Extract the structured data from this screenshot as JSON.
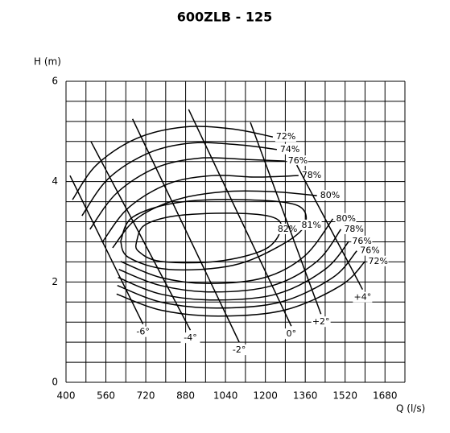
{
  "chart_data": {
    "type": "contour",
    "title": "600ZLB - 125",
    "xlabel": "Q (l/s)",
    "ylabel": "H (m)",
    "xlim": [
      400,
      1760
    ],
    "ylim": [
      0,
      6
    ],
    "xticks": [
      400,
      560,
      720,
      880,
      1040,
      1200,
      1360,
      1520,
      1680
    ],
    "yticks": [
      0,
      2,
      4,
      6
    ],
    "xgrid": [
      400,
      480,
      560,
      640,
      720,
      800,
      880,
      960,
      1040,
      1120,
      1200,
      1280,
      1360,
      1440,
      1520,
      1600,
      1680,
      1760
    ],
    "ygrid": [
      0,
      0.4,
      0.8,
      1.2,
      1.6,
      2,
      2.4,
      2.8,
      3.2,
      3.6,
      4,
      4.4,
      4.8,
      5.2,
      5.6,
      6
    ],
    "color": "#000000",
    "efficiency": [
      {
        "name": "72%",
        "x": [
          426,
          522,
          683,
          876,
          1069,
          1230
        ],
        "y": [
          3.64,
          4.33,
          4.86,
          5.09,
          5.05,
          4.89
        ]
      },
      {
        "name": "74%",
        "x": [
          464,
          570,
          731,
          908,
          1101,
          1246
        ],
        "y": [
          3.32,
          4.06,
          4.57,
          4.77,
          4.73,
          4.64
        ]
      },
      {
        "name": "76%",
        "x": [
          496,
          603,
          763,
          940,
          1133,
          1278
        ],
        "y": [
          3.05,
          3.77,
          4.28,
          4.47,
          4.44,
          4.41
        ]
      },
      {
        "name": "78%",
        "x": [
          548,
          651,
          812,
          989,
          1165,
          1333
        ],
        "y": [
          2.81,
          3.48,
          3.96,
          4.12,
          4.09,
          4.12
        ]
      },
      {
        "name": "80%",
        "x": [
          587,
          683,
          844,
          1037,
          1230,
          1407
        ],
        "y": [
          2.68,
          3.26,
          3.64,
          3.8,
          3.8,
          3.72
        ]
      },
      {
        "name": "82%",
        "x": [
          683,
          715,
          844,
          1069,
          1230,
          1262,
          1198,
          1005,
          779,
          689,
          683
        ],
        "y": [
          2.81,
          3.13,
          3.32,
          3.37,
          3.29,
          3.05,
          2.65,
          2.41,
          2.41,
          2.62,
          2.81
        ]
      },
      {
        "name": "81%",
        "x": [
          619,
          667,
          844,
          1101,
          1326,
          1358,
          1262,
          1069,
          812,
          651,
          619
        ],
        "y": [
          2.81,
          3.29,
          3.58,
          3.64,
          3.53,
          3.13,
          2.73,
          2.33,
          2.25,
          2.49,
          2.81
        ]
      },
      {
        "name": "80%",
        "x": [
          619,
          779,
          972,
          1198,
          1358,
          1471
        ],
        "y": [
          2.41,
          2.09,
          1.97,
          2.09,
          2.52,
          3.26
        ]
      },
      {
        "name": "78%",
        "x": [
          612,
          779,
          989,
          1230,
          1407,
          1503
        ],
        "y": [
          2.25,
          1.93,
          1.8,
          1.93,
          2.41,
          3.05
        ]
      },
      {
        "name": "76%",
        "x": [
          609,
          779,
          998,
          1246,
          1439,
          1535
        ],
        "y": [
          2.09,
          1.76,
          1.64,
          1.76,
          2.25,
          2.81
        ]
      },
      {
        "name": "76%",
        "x": [
          606,
          779,
          1005,
          1262,
          1471,
          1567
        ],
        "y": [
          1.93,
          1.6,
          1.48,
          1.6,
          2.09,
          2.62
        ]
      },
      {
        "name": "72%",
        "x": [
          603,
          779,
          1011,
          1278,
          1503,
          1600
        ],
        "y": [
          1.76,
          1.44,
          1.32,
          1.44,
          1.93,
          2.41
        ]
      }
    ],
    "blade_angles": [
      {
        "name": "-6°",
        "x": [
          416,
          709
        ],
        "y": [
          4.12,
          1.16
        ]
      },
      {
        "name": "-4°",
        "x": [
          500,
          899
        ],
        "y": [
          4.8,
          1.04
        ]
      },
      {
        "name": "-2°",
        "x": [
          667,
          1095
        ],
        "y": [
          5.25,
          0.8
        ]
      },
      {
        "name": "0°",
        "x": [
          892,
          1304
        ],
        "y": [
          5.44,
          1.12
        ]
      },
      {
        "name": "+2°",
        "x": [
          1140,
          1423
        ],
        "y": [
          5.18,
          1.36
        ]
      },
      {
        "name": "+4°",
        "x": [
          1326,
          1590
        ],
        "y": [
          4.33,
          1.85
        ]
      }
    ]
  }
}
